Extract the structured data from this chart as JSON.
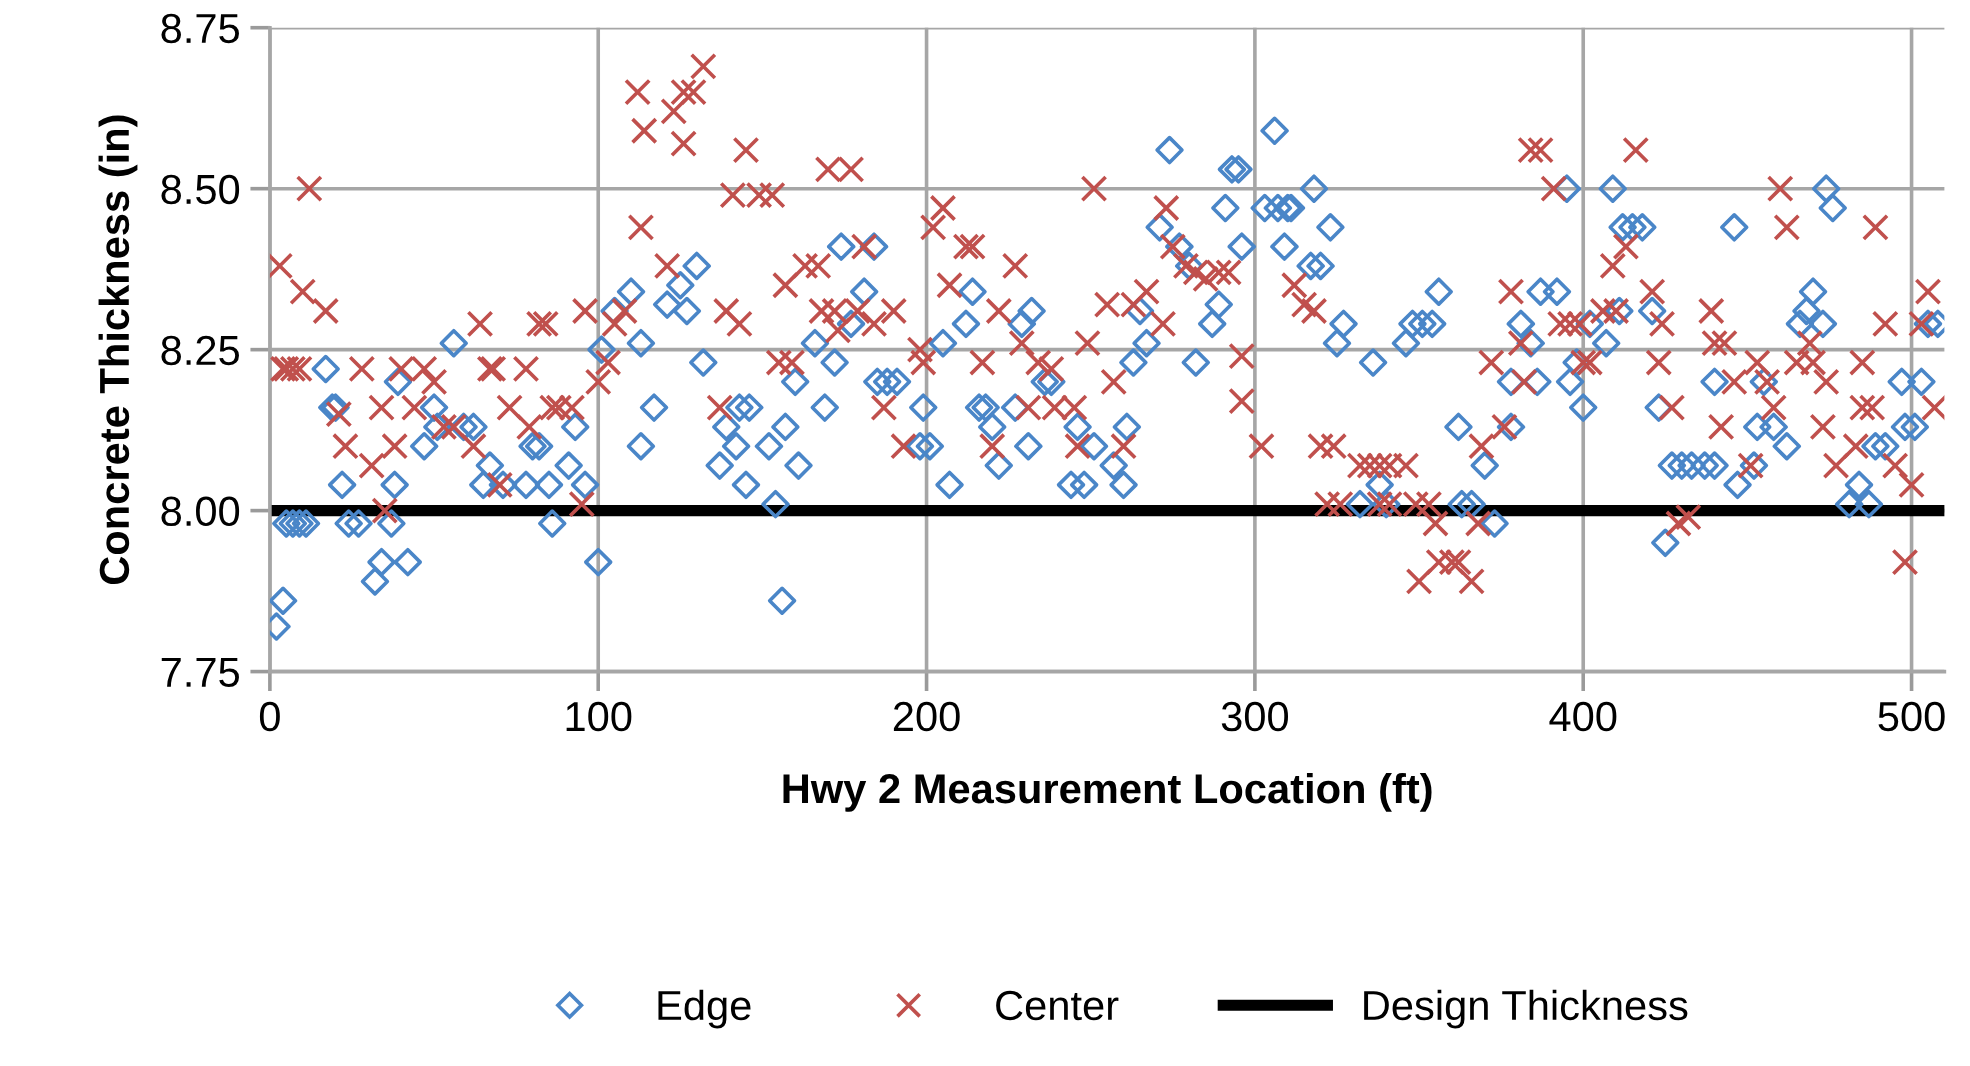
{
  "chart_data": {
    "type": "scatter",
    "xlabel": "Hwy 2 Measurement Location (ft)",
    "ylabel": "Concrete Thickness (in)",
    "xlim": [
      0,
      510
    ],
    "xticks": [
      0,
      100,
      200,
      300,
      400,
      500
    ],
    "ylim": [
      7.75,
      8.75
    ],
    "yticks": [
      {
        "value": 7.75,
        "label": "7.75"
      },
      {
        "value": 8.0,
        "label": "8.00"
      },
      {
        "value": 8.25,
        "label": "8.25"
      },
      {
        "value": 8.5,
        "label": "8.50"
      },
      {
        "value": 8.75,
        "label": "8.75"
      }
    ],
    "grid": true,
    "legend": "bottom",
    "ref_lines": [
      {
        "axis": "y",
        "value": 8.0,
        "label": "Design Thickness",
        "color": "#000000",
        "line_style": "solid"
      }
    ],
    "series": [
      {
        "name": "Edge",
        "color": "#4a86c8",
        "marker": "diamond",
        "x": [
          2,
          4,
          5,
          7,
          9,
          11,
          17,
          19,
          20,
          22,
          24,
          27,
          32,
          34,
          37,
          38,
          39,
          42,
          47,
          50,
          51,
          56,
          59,
          62,
          65,
          67,
          71,
          78,
          80,
          82,
          85,
          86,
          91,
          93,
          96,
          100,
          101,
          105,
          110,
          113,
          113,
          117,
          121,
          125,
          127,
          130,
          132,
          137,
          139,
          142,
          143,
          146,
          145,
          152,
          154,
          156,
          157,
          161,
          160,
          166,
          169,
          172,
          174,
          177,
          181,
          184,
          185,
          188,
          191,
          199,
          198,
          201,
          205,
          207,
          212,
          214,
          216,
          218,
          220,
          222,
          227,
          229,
          232,
          231,
          236,
          238,
          244,
          246,
          248,
          251,
          257,
          260,
          261,
          263,
          267,
          265,
          271,
          274,
          277,
          280,
          282,
          287,
          289,
          291,
          293,
          295,
          296,
          303,
          306,
          307,
          310,
          309,
          311,
          318,
          317,
          320,
          323,
          327,
          325,
          336,
          346,
          348,
          351,
          354,
          356,
          338,
          340,
          332,
          362,
          363,
          366,
          370,
          373,
          378,
          378,
          381,
          384,
          386,
          387,
          392,
          395,
          396,
          398,
          400,
          402,
          407,
          409,
          412,
          415,
          418,
          411,
          421,
          423,
          425,
          427,
          430,
          433,
          437,
          440,
          440,
          446,
          447,
          452,
          453,
          455,
          458,
          462,
          466,
          468,
          470,
          473,
          474,
          476,
          481,
          484,
          487,
          489,
          492,
          497,
          498,
          501,
          503,
          505,
          508
        ],
        "values": [
          7.82,
          7.86,
          7.98,
          7.98,
          7.98,
          7.98,
          8.22,
          8.16,
          8.16,
          8.04,
          7.98,
          7.98,
          7.89,
          7.92,
          7.98,
          8.04,
          8.2,
          7.92,
          8.1,
          8.16,
          8.13,
          8.26,
          8.13,
          8.13,
          8.04,
          8.07,
          8.04,
          8.04,
          8.1,
          8.1,
          8.04,
          7.98,
          8.07,
          8.13,
          8.04,
          7.92,
          8.25,
          8.31,
          8.34,
          8.26,
          8.1,
          8.16,
          8.32,
          8.35,
          8.31,
          8.38,
          8.23,
          8.07,
          8.13,
          8.1,
          8.16,
          8.16,
          8.04,
          8.1,
          8.01,
          7.86,
          8.13,
          8.07,
          8.2,
          8.26,
          8.16,
          8.23,
          8.41,
          8.29,
          8.34,
          8.41,
          8.2,
          8.2,
          8.2,
          8.16,
          8.1,
          8.1,
          8.26,
          8.04,
          8.29,
          8.34,
          8.16,
          8.16,
          8.13,
          8.07,
          8.16,
          8.29,
          8.31,
          8.1,
          8.2,
          8.2,
          8.04,
          8.13,
          8.04,
          8.1,
          8.07,
          8.04,
          8.13,
          8.23,
          8.26,
          8.31,
          8.44,
          8.56,
          8.41,
          8.38,
          8.23,
          8.29,
          8.32,
          8.47,
          8.53,
          8.53,
          8.41,
          8.47,
          8.59,
          8.47,
          8.47,
          8.41,
          8.47,
          8.5,
          8.38,
          8.38,
          8.44,
          8.29,
          8.26,
          8.23,
          8.26,
          8.29,
          8.29,
          8.29,
          8.34,
          8.04,
          8.01,
          8.01,
          8.13,
          8.01,
          8.01,
          8.07,
          7.98,
          8.13,
          8.2,
          8.29,
          8.26,
          8.2,
          8.34,
          8.34,
          8.5,
          8.2,
          8.23,
          8.16,
          8.29,
          8.26,
          8.5,
          8.44,
          8.44,
          8.44,
          8.31,
          8.31,
          8.16,
          7.95,
          8.07,
          8.07,
          8.07,
          8.07,
          8.07,
          8.2,
          8.44,
          8.04,
          8.07,
          8.13,
          8.2,
          8.13,
          8.1,
          8.29,
          8.31,
          8.34,
          8.29,
          8.5,
          8.47,
          8.01,
          8.04,
          8.01,
          8.1,
          8.1,
          8.2,
          8.13,
          8.13,
          8.2,
          8.29,
          8.29
        ]
      },
      {
        "name": "Center",
        "color": "#c0504d",
        "marker": "cross",
        "x": [
          3,
          4,
          5,
          7,
          9,
          10,
          12,
          17,
          21,
          23,
          28,
          31,
          34,
          35,
          38,
          40,
          44,
          47,
          50,
          53,
          56,
          62,
          64,
          67,
          68,
          70,
          73,
          78,
          79,
          82,
          84,
          86,
          88,
          92,
          95,
          96,
          100,
          103,
          105,
          108,
          112,
          114,
          113,
          121,
          123,
          126,
          126,
          129,
          132,
          137,
          139,
          141,
          143,
          145,
          149,
          153,
          155,
          157,
          159,
          163,
          167,
          168,
          170,
          172,
          173,
          177,
          179,
          181,
          184,
          187,
          190,
          193,
          198,
          199,
          202,
          205,
          207,
          212,
          214,
          217,
          220,
          222,
          227,
          229,
          231,
          234,
          238,
          239,
          245,
          246,
          249,
          251,
          255,
          257,
          260,
          263,
          267,
          272,
          273,
          275,
          279,
          282,
          285,
          289,
          292,
          296,
          296,
          302,
          312,
          315,
          318,
          320,
          324,
          322,
          326,
          332,
          335,
          338,
          341,
          346,
          338,
          341,
          349,
          353,
          355,
          350,
          356,
          360,
          362,
          366,
          368,
          369,
          372,
          376,
          378,
          381,
          382,
          384,
          387,
          391,
          393,
          396,
          399,
          400,
          402,
          406,
          410,
          409,
          413,
          416,
          421,
          424,
          423,
          427,
          429,
          432,
          439,
          440,
          443,
          442,
          446,
          451,
          453,
          456,
          458,
          460,
          462,
          465,
          469,
          470,
          473,
          474,
          477,
          483,
          485,
          485,
          488,
          489,
          492,
          495,
          500,
          498,
          503,
          505,
          507
        ],
        "values": [
          8.38,
          8.22,
          8.22,
          8.22,
          8.22,
          8.34,
          8.5,
          8.31,
          8.15,
          8.1,
          8.22,
          8.07,
          8.16,
          8.0,
          8.1,
          8.22,
          8.16,
          8.22,
          8.2,
          8.13,
          8.13,
          8.1,
          8.29,
          8.22,
          8.22,
          8.04,
          8.16,
          8.22,
          8.13,
          8.29,
          8.29,
          8.16,
          8.16,
          8.16,
          8.01,
          8.31,
          8.2,
          8.23,
          8.29,
          8.31,
          8.65,
          8.59,
          8.44,
          8.38,
          8.62,
          8.65,
          8.57,
          8.65,
          8.69,
          8.16,
          8.31,
          8.49,
          8.29,
          8.56,
          8.49,
          8.49,
          8.23,
          8.35,
          8.23,
          8.38,
          8.38,
          8.31,
          8.53,
          8.31,
          8.28,
          8.53,
          8.31,
          8.41,
          8.29,
          8.16,
          8.31,
          8.1,
          8.25,
          8.23,
          8.44,
          8.47,
          8.35,
          8.41,
          8.41,
          8.23,
          8.1,
          8.31,
          8.38,
          8.26,
          8.16,
          8.23,
          8.22,
          8.16,
          8.16,
          8.1,
          8.26,
          8.5,
          8.32,
          8.2,
          8.1,
          8.32,
          8.34,
          8.29,
          8.47,
          8.41,
          8.38,
          8.37,
          8.36,
          8.37,
          8.37,
          8.24,
          8.17,
          8.1,
          8.35,
          8.32,
          8.31,
          8.1,
          8.1,
          8.01,
          8.01,
          8.07,
          8.07,
          8.07,
          8.07,
          8.07,
          8.01,
          8.01,
          8.01,
          8.01,
          7.98,
          7.89,
          7.92,
          7.92,
          7.92,
          7.89,
          7.98,
          8.1,
          8.23,
          8.13,
          8.34,
          8.26,
          8.2,
          8.56,
          8.56,
          8.5,
          8.29,
          8.29,
          8.29,
          8.23,
          8.23,
          8.31,
          8.31,
          8.38,
          8.41,
          8.56,
          8.34,
          8.29,
          8.23,
          8.16,
          7.98,
          7.99,
          8.31,
          8.26,
          8.26,
          8.13,
          8.2,
          8.07,
          8.23,
          8.2,
          8.16,
          8.5,
          8.44,
          8.23,
          8.26,
          8.23,
          8.13,
          8.2,
          8.07,
          8.1,
          8.23,
          8.16,
          8.16,
          8.44,
          8.29,
          8.07,
          8.04,
          7.92,
          8.29,
          8.34,
          8.16
        ]
      }
    ]
  }
}
